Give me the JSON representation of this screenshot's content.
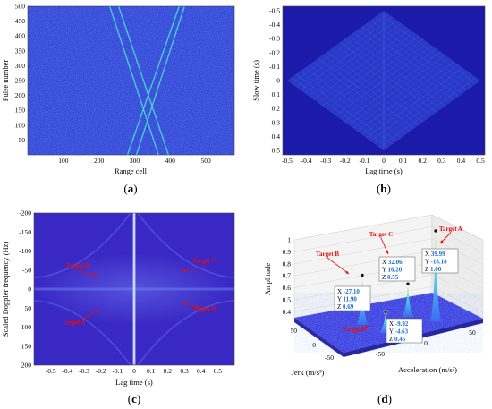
{
  "chart_data": [
    {
      "panel": "(a)",
      "panel_letter": "a",
      "type": "heatmap",
      "xlabel": "Range cell",
      "ylabel": "Pulse number",
      "xticks": [
        100,
        200,
        300,
        400,
        500
      ],
      "yticks": [
        50,
        100,
        150,
        200,
        250,
        300,
        350,
        400,
        450,
        500
      ],
      "xlim": [
        0,
        580
      ],
      "ylim": [
        0,
        500
      ],
      "y_direction": "reversed",
      "colors": {
        "background": "#3046d6",
        "trace": "#45dcd0"
      },
      "traces": [
        {
          "x": [
            230,
            367
          ]
        },
        {
          "x": [
            255,
            395
          ]
        },
        {
          "x": [
            440,
            305
          ]
        },
        {
          "x": [
            425,
            280
          ]
        }
      ]
    },
    {
      "panel": "(b)",
      "panel_letter": "b",
      "type": "heatmap",
      "xlabel": "Lag time (s)",
      "ylabel": "Slow time (s)",
      "xticks": [
        "-0.5",
        "-0.4",
        "-0.3",
        "-0.2",
        "-0.1",
        "0",
        "0.1",
        "0.2",
        "0.3",
        "0.4",
        "0.5"
      ],
      "yticks": [
        "-0.5",
        "-0.4",
        "-0.3",
        "-0.2",
        "-0.1",
        "0",
        "0.1",
        "0.2",
        "0.3",
        "0.4",
        "0.5"
      ],
      "xlim": [
        -0.5,
        0.5
      ],
      "ylim": [
        -0.5,
        0.5
      ],
      "colors": {
        "outside": "#1c1aa8",
        "diamond": "#2a38c8",
        "grid": "#4a7ae0"
      }
    },
    {
      "panel": "(c)",
      "panel_letter": "c",
      "type": "heatmap",
      "xlabel": "Lag time (s)",
      "ylabel": "Scaled Doppler frequency (Hz)",
      "xticks": [
        "-0.5",
        "-0.4",
        "-0.3",
        "-0.2",
        "-0.1",
        "0",
        "0.1",
        "0.2",
        "0.3",
        "0.4",
        "0.5"
      ],
      "yticks": [
        "-200",
        "-150",
        "-100",
        "-50",
        "0",
        "50",
        "100",
        "150",
        "200"
      ],
      "xlim": [
        -0.6,
        0.6
      ],
      "ylim": [
        -200,
        200
      ],
      "colors": {
        "background": "#3a28c4",
        "line": "#c8d8ff",
        "label": "#e01010"
      },
      "annotations": [
        {
          "text": "Target B",
          "x": -0.34,
          "y": -57,
          "ax": -0.22,
          "ay": -33
        },
        {
          "text": "Target C",
          "x": 0.42,
          "y": -70,
          "ax": 0.29,
          "ay": -45
        },
        {
          "text": "Target D",
          "x": 0.42,
          "y": 57,
          "ax": 0.29,
          "ay": 35
        },
        {
          "text": "Target A",
          "x": -0.36,
          "y": 93,
          "ax": -0.21,
          "ay": 55
        }
      ]
    },
    {
      "panel": "(d)",
      "panel_letter": "d",
      "type": "surface",
      "xlabel": "Jerk (m/s³)",
      "ylabel": "Acceleration (m/s²)",
      "zlabel": "Amplitude",
      "zticks": [
        "0.4",
        "0.5",
        "0.6",
        "0.7",
        "0.8",
        "0.9",
        "1"
      ],
      "zlim": [
        0.35,
        1
      ],
      "jerk_ticks": [
        "50",
        "0",
        "-50"
      ],
      "accel_ticks": [
        "-50",
        "0",
        "50"
      ],
      "colors": {
        "surface": "#3d3fe0",
        "peak": "#5ae0e8",
        "label": "#e01010",
        "value": "#1a6fd0"
      },
      "peaks": [
        {
          "name": "Target A",
          "X": "39.99",
          "Y": "-18.18",
          "Z": "1.00"
        },
        {
          "name": "Target C",
          "X": "32.06",
          "Y": "16.20",
          "Z": "0.55"
        },
        {
          "name": "Target B",
          "X": "-27.10",
          "Y": "11.90",
          "Z": "0.69"
        },
        {
          "name": "Target D",
          "X": "-9.92",
          "Y": "-4.63",
          "Z": "0.45"
        }
      ]
    }
  ]
}
